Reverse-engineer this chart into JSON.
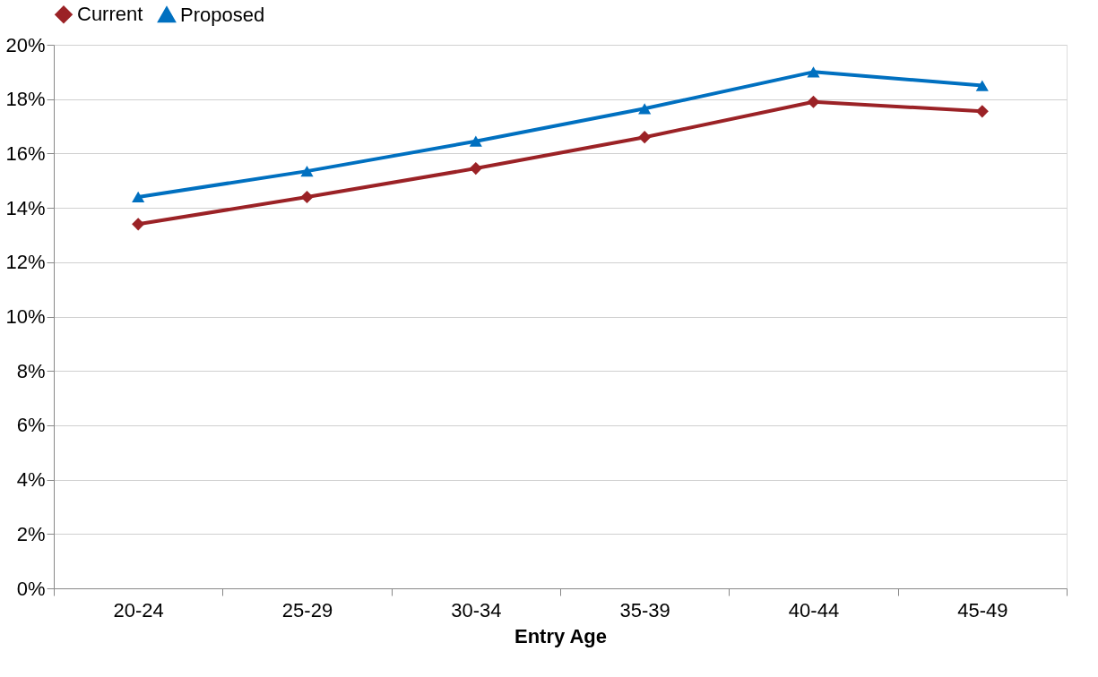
{
  "chart_data": {
    "type": "line",
    "xlabel": "Entry Age",
    "categories": [
      "20-24",
      "25-29",
      "30-34",
      "35-39",
      "40-44",
      "45-49"
    ],
    "series": [
      {
        "name": "Current",
        "color": "#9b2226",
        "marker": "diamond",
        "values": [
          13.4,
          14.4,
          15.45,
          16.6,
          17.9,
          17.55
        ]
      },
      {
        "name": "Proposed",
        "color": "#0070c0",
        "marker": "triangle",
        "values": [
          14.4,
          15.35,
          16.45,
          17.65,
          19.0,
          18.5
        ]
      }
    ],
    "ylim": [
      0,
      20
    ],
    "yticks": [
      {
        "value": 0,
        "label": "0%"
      },
      {
        "value": 2,
        "label": "2%"
      },
      {
        "value": 4,
        "label": "4%"
      },
      {
        "value": 6,
        "label": "6%"
      },
      {
        "value": 8,
        "label": "8%"
      },
      {
        "value": 10,
        "label": "10%"
      },
      {
        "value": 12,
        "label": "12%"
      },
      {
        "value": 14,
        "label": "14%"
      },
      {
        "value": 16,
        "label": "16%"
      },
      {
        "value": 18,
        "label": "18%"
      },
      {
        "value": 20,
        "label": "20%"
      }
    ],
    "grid": "y",
    "legend": "top",
    "line_style": "solid"
  }
}
